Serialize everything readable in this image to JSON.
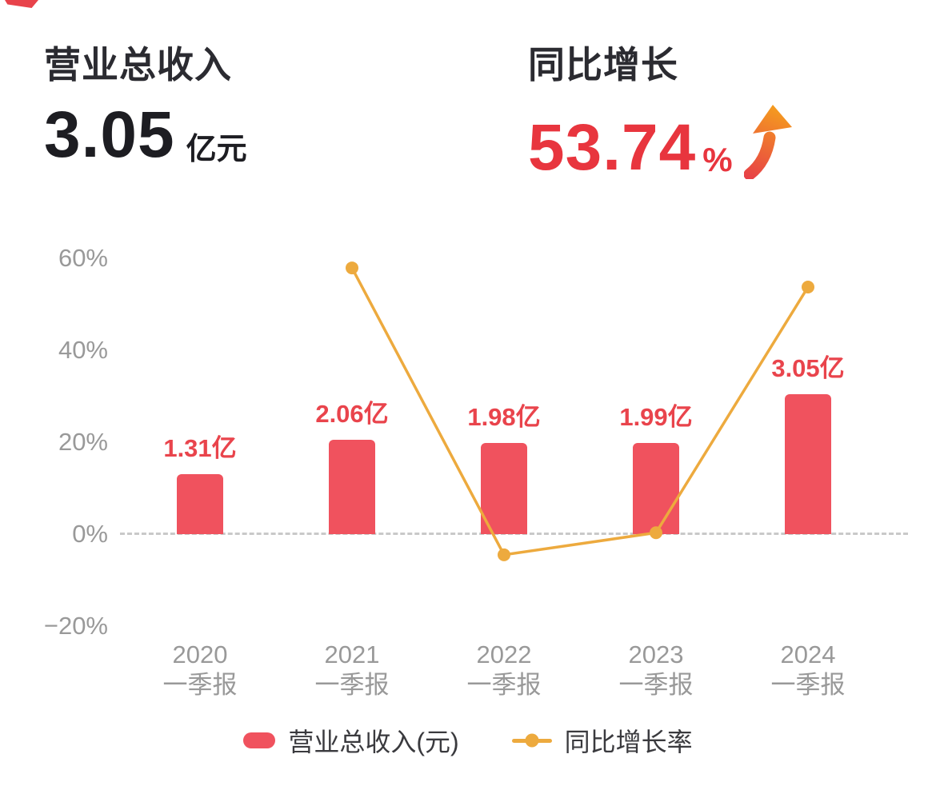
{
  "decoration": {
    "corner_ribbon_color": "#e8434b"
  },
  "colors": {
    "accent_red": "#e8353e",
    "bar_red": "#f0525e",
    "bar_label_red": "#e9444c",
    "line_orange": "#edaa3e",
    "axis_gray": "#999999",
    "zero_line_gray": "#c9c9c9",
    "title_dark": "#1d1d22"
  },
  "header": {
    "revenue": {
      "title": "营业总收入",
      "value": "3.05",
      "unit": "亿元"
    },
    "growth": {
      "title": "同比增长",
      "value": "53.74",
      "unit": "%",
      "icon": "up-arrow-icon"
    }
  },
  "chart_data": {
    "type": "combo-bar-line",
    "categories": [
      [
        "2020",
        "一季报"
      ],
      [
        "2021",
        "一季报"
      ],
      [
        "2022",
        "一季报"
      ],
      [
        "2023",
        "一季报"
      ],
      [
        "2024",
        "一季报"
      ]
    ],
    "bar_series": {
      "name": "营业总收入(元)",
      "unit": "亿",
      "values": [
        1.31,
        2.06,
        1.98,
        1.99,
        3.05
      ],
      "labels": [
        "1.31亿",
        "2.06亿",
        "1.98亿",
        "1.99亿",
        "3.05亿"
      ],
      "color": "#f0525e",
      "label_color": "#e9444c"
    },
    "line_series": {
      "name": "同比增长率",
      "unit": "%",
      "values": [
        null,
        57.9,
        -4.5,
        0.3,
        53.74
      ],
      "color": "#edaa3e"
    },
    "y_axis": {
      "unit": "%",
      "ticks": [
        {
          "label": "60%",
          "value": 60
        },
        {
          "label": "40%",
          "value": 40
        },
        {
          "label": "20%",
          "value": 20
        },
        {
          "label": "0%",
          "value": 0
        },
        {
          "label": "−20%",
          "value": -20
        }
      ],
      "label_color": "#999999"
    },
    "zero_line": {
      "style": "dashed",
      "color": "#c9c9c9"
    },
    "grid": false,
    "legend_position": "bottom"
  },
  "legend": {
    "items": [
      {
        "label": "营业总收入(元)",
        "swatch": "bar",
        "color": "#f0525e"
      },
      {
        "label": "同比增长率",
        "swatch": "line-dot",
        "color": "#edaa3e"
      }
    ]
  }
}
